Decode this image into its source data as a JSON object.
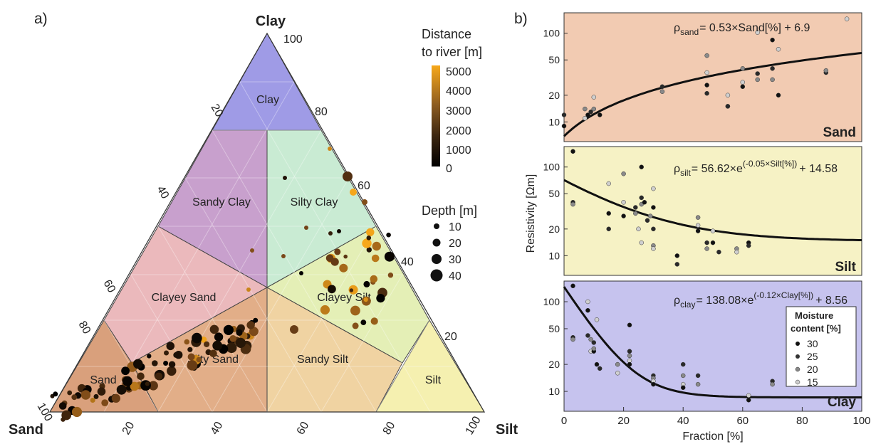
{
  "panel_a": {
    "label": "a)",
    "corner_clay": "Clay",
    "corner_sand": "Sand",
    "corner_silt": "Silt",
    "corner_top_value": "100",
    "corner_sand_value": "100",
    "left_axis_ticks": [
      "20",
      "40",
      "60",
      "80"
    ],
    "right_axis_ticks": [
      "80",
      "60",
      "40",
      "20"
    ],
    "bottom_axis_ticks": [
      "20",
      "40",
      "60",
      "80",
      "100"
    ],
    "regions": [
      "Clay",
      "Sandy Clay",
      "Silty Clay",
      "Clayey Sand",
      "Clayey Silt",
      "Silty Sand",
      "Sandy Silt",
      "Sand",
      "Silt"
    ],
    "colorbar_title": [
      "Distance",
      "to river [m]"
    ],
    "colorbar_ticks": [
      "5000",
      "4000",
      "3000",
      "2000",
      "1000",
      "0"
    ],
    "depth_title": "Depth [m]",
    "depth_values": [
      "10",
      "20",
      "30",
      "40"
    ]
  },
  "panel_b": {
    "label": "b)",
    "ylabel": "Resistivity [Ωm]",
    "xlabel": "Fraction [%]",
    "xticks": [
      "0",
      "20",
      "40",
      "60",
      "80",
      "100"
    ],
    "yticks": [
      "10",
      "20",
      "50",
      "100"
    ],
    "moisture_title": [
      "Moisture",
      "content [%]"
    ],
    "moisture_values": [
      "30",
      "25",
      "20",
      "15"
    ],
    "colors": {
      "sand": "#f2cbb2",
      "silt": "#f6f2c5",
      "clay": "#c6c3ee",
      "clay_region": "#9f9be6"
    },
    "subplots": [
      {
        "name": "Sand",
        "eq_lhs": "ρ",
        "eq_sub": "sand",
        "eq_rhs": "= 0.53×Sand[%] + 6.9",
        "eq_sup": ""
      },
      {
        "name": "Silt",
        "eq_lhs": "ρ",
        "eq_sub": "silt",
        "eq_rhs": "= 56.62×e",
        "eq_sup": "(-0.05×Silt[%])",
        "eq_tail": "+ 14.58"
      },
      {
        "name": "Clay",
        "eq_lhs": "ρ",
        "eq_sub": "clay",
        "eq_rhs": "= 138.08×e",
        "eq_sup": "(-0.12×Clay[%])",
        "eq_tail": "+ 8.56"
      }
    ]
  },
  "chart_data": [
    {
      "type": "scatter",
      "title": "Sand",
      "xlabel": "Fraction [%]",
      "ylabel": "Resistivity [Ωm]",
      "xlim": [
        0,
        100
      ],
      "ylim": [
        6,
        170
      ],
      "yscale": "log",
      "fit": "0.53*x + 6.9",
      "points": [
        [
          0,
          9
        ],
        [
          0,
          12
        ],
        [
          7,
          14
        ],
        [
          7,
          11
        ],
        [
          8,
          12
        ],
        [
          9,
          13
        ],
        [
          10,
          14
        ],
        [
          10,
          19
        ],
        [
          12,
          12
        ],
        [
          33,
          25
        ],
        [
          33,
          22
        ],
        [
          48,
          36
        ],
        [
          48,
          26
        ],
        [
          48,
          21
        ],
        [
          48,
          56
        ],
        [
          55,
          20
        ],
        [
          55,
          15
        ],
        [
          55,
          15
        ],
        [
          60,
          40
        ],
        [
          60,
          28
        ],
        [
          60,
          25
        ],
        [
          65,
          35
        ],
        [
          65,
          30
        ],
        [
          65,
          102
        ],
        [
          70,
          84
        ],
        [
          70,
          40
        ],
        [
          70,
          30
        ],
        [
          72,
          66
        ],
        [
          72,
          20
        ],
        [
          88,
          36
        ],
        [
          88,
          38
        ],
        [
          95,
          145
        ]
      ]
    },
    {
      "type": "scatter",
      "title": "Silt",
      "xlabel": "Fraction [%]",
      "ylabel": "Resistivity [Ωm]",
      "xlim": [
        0,
        100
      ],
      "ylim": [
        6,
        170
      ],
      "yscale": "log",
      "fit": "56.62*exp(-0.05*x) + 14.58",
      "points": [
        [
          3,
          150
        ],
        [
          3,
          40
        ],
        [
          3,
          38
        ],
        [
          15,
          65
        ],
        [
          15,
          30
        ],
        [
          15,
          20
        ],
        [
          20,
          84
        ],
        [
          20,
          40
        ],
        [
          20,
          28
        ],
        [
          24,
          35
        ],
        [
          24,
          30
        ],
        [
          25,
          20
        ],
        [
          26,
          100
        ],
        [
          26,
          45
        ],
        [
          26,
          38
        ],
        [
          26,
          14
        ],
        [
          27,
          40
        ],
        [
          28,
          25
        ],
        [
          29,
          28
        ],
        [
          30,
          57
        ],
        [
          30,
          35
        ],
        [
          30,
          20
        ],
        [
          30,
          13
        ],
        [
          30,
          12
        ],
        [
          38,
          10
        ],
        [
          38,
          8
        ],
        [
          45,
          27
        ],
        [
          45,
          22
        ],
        [
          45,
          19
        ],
        [
          48,
          14
        ],
        [
          48,
          12
        ],
        [
          50,
          19
        ],
        [
          50,
          14
        ],
        [
          52,
          11
        ],
        [
          58,
          12
        ],
        [
          58,
          11
        ],
        [
          62,
          14
        ],
        [
          62,
          13
        ]
      ]
    },
    {
      "type": "scatter",
      "title": "Clay",
      "xlabel": "Fraction [%]",
      "ylabel": "Resistivity [Ωm]",
      "xlim": [
        0,
        100
      ],
      "ylim": [
        6,
        170
      ],
      "yscale": "log",
      "fit": "138.08*exp(-0.12*x) + 8.56",
      "points": [
        [
          3,
          150
        ],
        [
          3,
          40
        ],
        [
          3,
          38
        ],
        [
          8,
          100
        ],
        [
          8,
          80
        ],
        [
          8,
          42
        ],
        [
          9,
          38
        ],
        [
          9,
          28
        ],
        [
          10,
          28
        ],
        [
          10,
          35
        ],
        [
          10,
          30
        ],
        [
          11,
          63
        ],
        [
          11,
          20
        ],
        [
          12,
          18
        ],
        [
          18,
          20
        ],
        [
          18,
          16
        ],
        [
          22,
          55
        ],
        [
          22,
          28
        ],
        [
          22,
          25
        ],
        [
          22,
          22
        ],
        [
          22,
          20
        ],
        [
          30,
          15
        ],
        [
          30,
          14
        ],
        [
          30,
          13
        ],
        [
          30,
          12
        ],
        [
          40,
          20
        ],
        [
          40,
          15
        ],
        [
          40,
          12
        ],
        [
          40,
          11
        ],
        [
          45,
          15
        ],
        [
          45,
          12
        ],
        [
          62,
          9
        ],
        [
          62,
          8
        ],
        [
          70,
          13
        ],
        [
          70,
          12
        ]
      ]
    }
  ]
}
